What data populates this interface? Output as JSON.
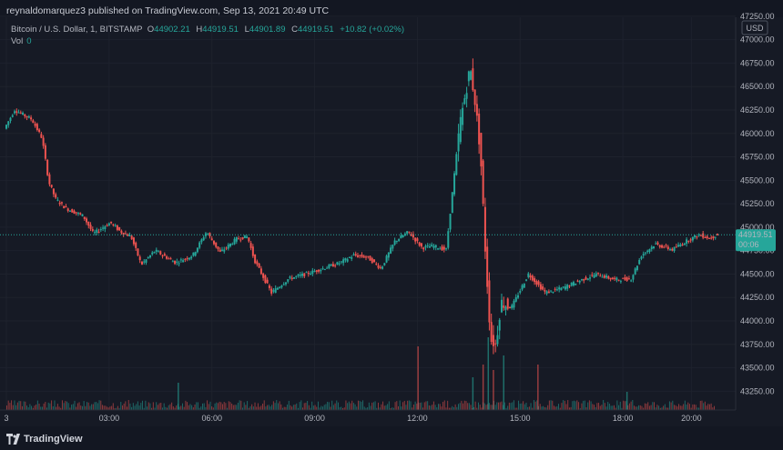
{
  "publisher_line": "reynaldomarquez3 published on TradingView.com, Sep 13, 2021 20:49 UTC",
  "legend": {
    "symbol": "Bitcoin / U.S. Dollar, 1, BITSTAMP",
    "open_key": "O",
    "open": "44902.21",
    "high_key": "H",
    "high": "44919.51",
    "low_key": "L",
    "low": "44901.89",
    "close_key": "C",
    "close": "44919.51",
    "change": "+10.82 (+0.02%)",
    "vol_label": "Vol",
    "vol_value": "0"
  },
  "currency_label": "USD",
  "last_price": {
    "value": "44919.51",
    "countdown": "00:06"
  },
  "footer": {
    "brand": "TradingView"
  },
  "colors": {
    "up": "#26a69a",
    "down": "#ef5350",
    "background": "#161a25",
    "axis_text": "#b2b5be"
  },
  "chart_data": {
    "type": "candlestick",
    "ylim": [
      43050,
      47200
    ],
    "y_ticks": [
      {
        "value": 43250,
        "label": "43250.00"
      },
      {
        "value": 43500,
        "label": "43500.00"
      },
      {
        "value": 43750,
        "label": "43750.00"
      },
      {
        "value": 44000,
        "label": "44000.00"
      },
      {
        "value": 44250,
        "label": "44250.00"
      },
      {
        "value": 44500,
        "label": "44500.00"
      },
      {
        "value": 44750,
        "label": "44750.00"
      },
      {
        "value": 45000,
        "label": "45000.00"
      },
      {
        "value": 45250,
        "label": "45250.00"
      },
      {
        "value": 45500,
        "label": "45500.00"
      },
      {
        "value": 45750,
        "label": "45750.00"
      },
      {
        "value": 46000,
        "label": "46000.00"
      },
      {
        "value": 46250,
        "label": "46250.00"
      },
      {
        "value": 46500,
        "label": "46500.00"
      },
      {
        "value": 46750,
        "label": "46750.00"
      },
      {
        "value": 47000,
        "label": "47000.00"
      },
      {
        "value": 47250,
        "label": "47250.00"
      }
    ],
    "xlim": [
      0.0,
      21.0
    ],
    "x_ticks": [
      {
        "value": 0.0,
        "label": "3"
      },
      {
        "value": 3.0,
        "label": "03:00"
      },
      {
        "value": 6.0,
        "label": "06:00"
      },
      {
        "value": 9.0,
        "label": "09:00"
      },
      {
        "value": 12.0,
        "label": "12:00"
      },
      {
        "value": 15.0,
        "label": "15:00"
      },
      {
        "value": 18.0,
        "label": "18:00"
      },
      {
        "value": 20.0,
        "label": "20:00"
      }
    ],
    "path_hours": [
      0.0,
      0.3,
      0.8,
      1.1,
      1.3,
      1.5,
      1.8,
      2.3,
      2.6,
      3.1,
      3.4,
      3.7,
      4.0,
      4.4,
      5.0,
      5.5,
      5.9,
      6.3,
      6.8,
      7.1,
      7.3,
      7.6,
      7.8,
      8.3,
      8.8,
      9.3,
      9.8,
      10.2,
      10.6,
      11.0,
      11.4,
      11.8,
      12.2,
      12.5,
      12.9,
      13.3,
      13.6,
      13.75,
      13.9,
      14.05,
      14.2,
      14.35,
      14.5,
      14.8,
      15.3,
      15.8,
      16.3,
      16.8,
      17.3,
      17.8,
      18.3,
      18.6,
      19.0,
      19.5,
      20.0,
      20.3,
      20.6,
      20.8
    ],
    "path_prices": [
      46050,
      46250,
      46150,
      45950,
      45480,
      45300,
      45200,
      45120,
      44930,
      45050,
      44950,
      44900,
      44600,
      44750,
      44620,
      44700,
      44950,
      44730,
      44880,
      44900,
      44650,
      44440,
      44300,
      44450,
      44500,
      44560,
      44620,
      44700,
      44680,
      44560,
      44850,
      44950,
      44780,
      44800,
      44760,
      46100,
      46700,
      46320,
      45800,
      44700,
      43800,
      43750,
      44200,
      44140,
      44500,
      44300,
      44350,
      44430,
      44500,
      44440,
      44450,
      44700,
      44820,
      44760,
      44870,
      44920,
      44880,
      44920
    ],
    "volume_spikes": [
      {
        "x": 5.0,
        "height": 0.15
      },
      {
        "x": 12.0,
        "height": 0.35
      },
      {
        "x": 13.6,
        "height": 0.18
      },
      {
        "x": 13.9,
        "height": 0.25
      },
      {
        "x": 14.05,
        "height": 0.4
      },
      {
        "x": 14.2,
        "height": 0.22
      },
      {
        "x": 14.5,
        "height": 0.3
      },
      {
        "x": 15.5,
        "height": 0.25
      },
      {
        "x": 18.1,
        "height": 0.1
      }
    ]
  }
}
